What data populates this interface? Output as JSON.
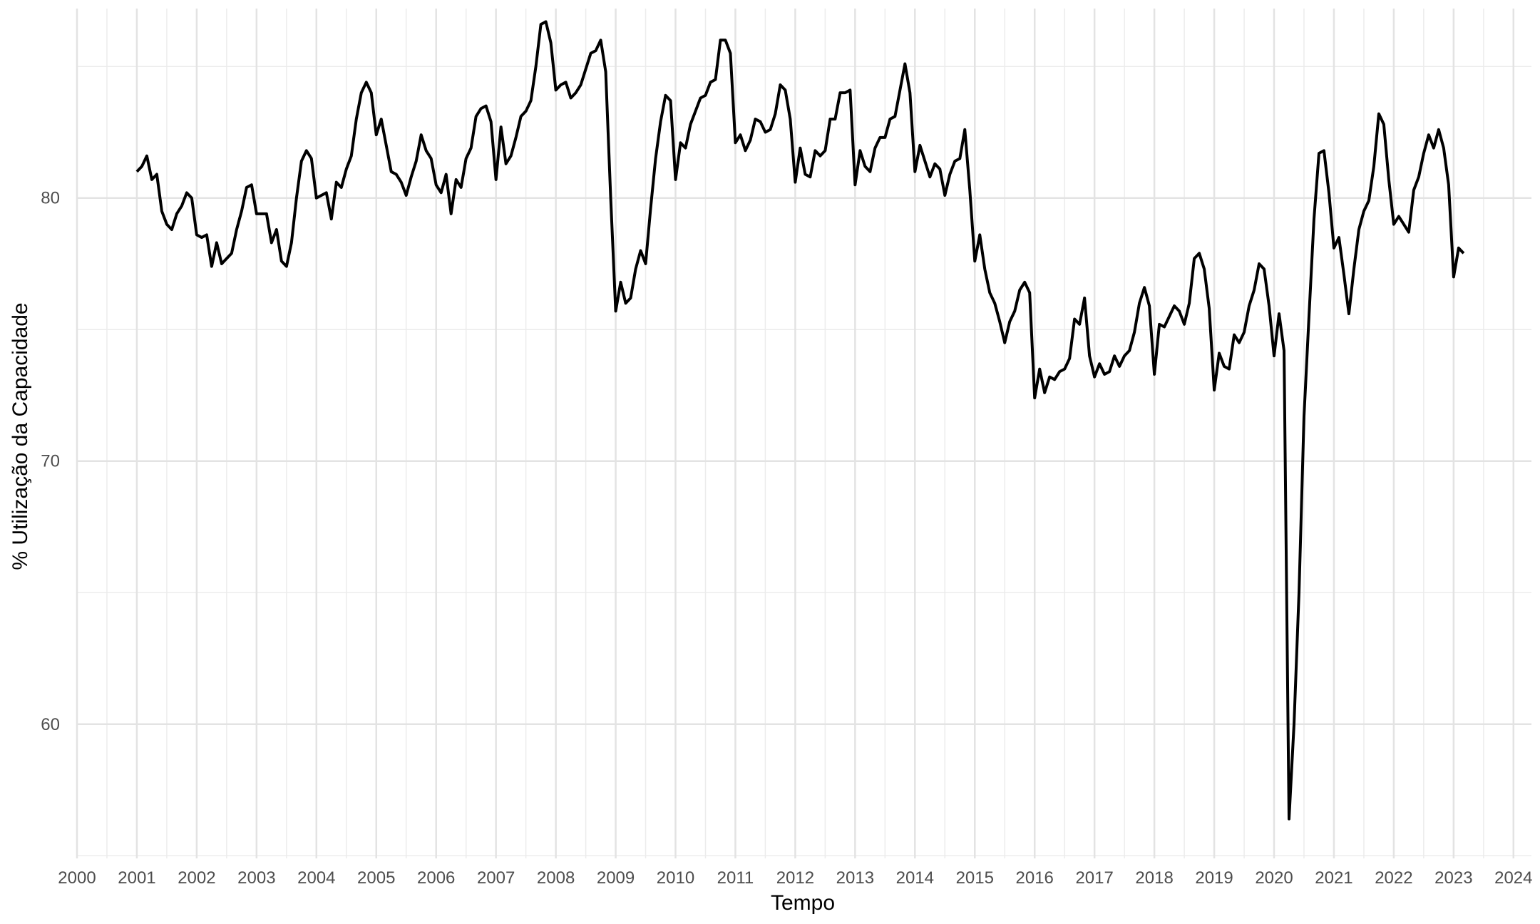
{
  "chart_data": {
    "type": "line",
    "title": "",
    "xlabel": "Tempo",
    "ylabel": "% Utilização da Capacidade",
    "xlim": [
      2000,
      2024.3
    ],
    "ylim": [
      54.9,
      87.2
    ],
    "x_ticks": [
      "2000",
      "2001",
      "2002",
      "2003",
      "2004",
      "2005",
      "2006",
      "2007",
      "2008",
      "2009",
      "2010",
      "2011",
      "2012",
      "2013",
      "2014",
      "2015",
      "2016",
      "2017",
      "2018",
      "2019",
      "2020",
      "2021",
      "2022",
      "2023",
      "2024"
    ],
    "y_ticks": [
      "60",
      "70",
      "80"
    ],
    "grid": true,
    "legend": "none",
    "line_color": "#000000",
    "series": [
      {
        "x": [
          "2001-01",
          "2001-02",
          "2001-03",
          "2001-04",
          "2001-05",
          "2001-06",
          "2001-07",
          "2001-08",
          "2001-09",
          "2001-10",
          "2001-11",
          "2001-12",
          "2002-01",
          "2002-02",
          "2002-03",
          "2002-04",
          "2002-05",
          "2002-06",
          "2002-07",
          "2002-08",
          "2002-09",
          "2002-10",
          "2002-11",
          "2002-12",
          "2003-01",
          "2003-02",
          "2003-03",
          "2003-04",
          "2003-05",
          "2003-06",
          "2003-07",
          "2003-08",
          "2003-09",
          "2003-10",
          "2003-11",
          "2003-12",
          "2004-01",
          "2004-02",
          "2004-03",
          "2004-04",
          "2004-05",
          "2004-06",
          "2004-07",
          "2004-08",
          "2004-09",
          "2004-10",
          "2004-11",
          "2004-12",
          "2005-01",
          "2005-02",
          "2005-03",
          "2005-04",
          "2005-05",
          "2005-06",
          "2005-07",
          "2005-08",
          "2005-09",
          "2005-10",
          "2005-11",
          "2005-12",
          "2006-01",
          "2006-02",
          "2006-03",
          "2006-04",
          "2006-05",
          "2006-06",
          "2006-07",
          "2006-08",
          "2006-09",
          "2006-10",
          "2006-11",
          "2006-12",
          "2007-01",
          "2007-02",
          "2007-03",
          "2007-04",
          "2007-05",
          "2007-06",
          "2007-07",
          "2007-08",
          "2007-09",
          "2007-10",
          "2007-11",
          "2007-12",
          "2008-01",
          "2008-02",
          "2008-03",
          "2008-04",
          "2008-05",
          "2008-06",
          "2008-07",
          "2008-08",
          "2008-09",
          "2008-10",
          "2008-11",
          "2008-12",
          "2009-01",
          "2009-02",
          "2009-03",
          "2009-04",
          "2009-05",
          "2009-06",
          "2009-07",
          "2009-08",
          "2009-09",
          "2009-10",
          "2009-11",
          "2009-12",
          "2010-01",
          "2010-02",
          "2010-03",
          "2010-04",
          "2010-05",
          "2010-06",
          "2010-07",
          "2010-08",
          "2010-09",
          "2010-10",
          "2010-11",
          "2010-12",
          "2011-01",
          "2011-02",
          "2011-03",
          "2011-04",
          "2011-05",
          "2011-06",
          "2011-07",
          "2011-08",
          "2011-09",
          "2011-10",
          "2011-11",
          "2011-12",
          "2012-01",
          "2012-02",
          "2012-03",
          "2012-04",
          "2012-05",
          "2012-06",
          "2012-07",
          "2012-08",
          "2012-09",
          "2012-10",
          "2012-11",
          "2012-12",
          "2013-01",
          "2013-02",
          "2013-03",
          "2013-04",
          "2013-05",
          "2013-06",
          "2013-07",
          "2013-08",
          "2013-09",
          "2013-10",
          "2013-11",
          "2013-12",
          "2014-01",
          "2014-02",
          "2014-03",
          "2014-04",
          "2014-05",
          "2014-06",
          "2014-07",
          "2014-08",
          "2014-09",
          "2014-10",
          "2014-11",
          "2014-12",
          "2015-01",
          "2015-02",
          "2015-03",
          "2015-04",
          "2015-05",
          "2015-06",
          "2015-07",
          "2015-08",
          "2015-09",
          "2015-10",
          "2015-11",
          "2015-12",
          "2016-01",
          "2016-02",
          "2016-03",
          "2016-04",
          "2016-05",
          "2016-06",
          "2016-07",
          "2016-08",
          "2016-09",
          "2016-10",
          "2016-11",
          "2016-12",
          "2017-01",
          "2017-02",
          "2017-03",
          "2017-04",
          "2017-05",
          "2017-06",
          "2017-07",
          "2017-08",
          "2017-09",
          "2017-10",
          "2017-11",
          "2017-12",
          "2018-01",
          "2018-02",
          "2018-03",
          "2018-04",
          "2018-05",
          "2018-06",
          "2018-07",
          "2018-08",
          "2018-09",
          "2018-10",
          "2018-11",
          "2018-12",
          "2019-01",
          "2019-02",
          "2019-03",
          "2019-04",
          "2019-05",
          "2019-06",
          "2019-07",
          "2019-08",
          "2019-09",
          "2019-10",
          "2019-11",
          "2019-12",
          "2020-01",
          "2020-02",
          "2020-03",
          "2020-04",
          "2020-05",
          "2020-06",
          "2020-07",
          "2020-08",
          "2020-09",
          "2020-10",
          "2020-11",
          "2020-12",
          "2021-01",
          "2021-02",
          "2021-03",
          "2021-04",
          "2021-05",
          "2021-06",
          "2021-07",
          "2021-08",
          "2021-09",
          "2021-10",
          "2021-11",
          "2021-12",
          "2022-01",
          "2022-02",
          "2022-03",
          "2022-04",
          "2022-05",
          "2022-06",
          "2022-07",
          "2022-08",
          "2022-09",
          "2022-10",
          "2022-11",
          "2022-12",
          "2023-01",
          "2023-02",
          "2023-03"
        ],
        "y": [
          81.0,
          81.2,
          81.6,
          80.7,
          80.9,
          79.5,
          79.0,
          78.8,
          79.4,
          79.7,
          80.2,
          80.0,
          78.6,
          78.5,
          78.6,
          77.4,
          78.3,
          77.5,
          77.7,
          77.9,
          78.8,
          79.5,
          80.4,
          80.5,
          79.4,
          79.4,
          79.4,
          78.3,
          78.8,
          77.6,
          77.4,
          78.3,
          80.0,
          81.4,
          81.8,
          81.5,
          80.0,
          80.1,
          80.2,
          79.2,
          80.6,
          80.4,
          81.1,
          81.6,
          83.0,
          84.0,
          84.4,
          84.0,
          82.4,
          83.0,
          82.0,
          81.0,
          80.9,
          80.6,
          80.1,
          80.8,
          81.4,
          82.4,
          81.8,
          81.5,
          80.5,
          80.2,
          80.9,
          79.4,
          80.7,
          80.4,
          81.5,
          81.9,
          83.1,
          83.4,
          83.5,
          82.9,
          80.7,
          82.7,
          81.3,
          81.6,
          82.3,
          83.1,
          83.3,
          83.7,
          85.0,
          86.6,
          86.7,
          85.9,
          84.1,
          84.3,
          84.4,
          83.8,
          84.0,
          84.3,
          84.9,
          85.5,
          85.6,
          86.0,
          84.8,
          80.0,
          75.7,
          76.8,
          76.0,
          76.2,
          77.3,
          78.0,
          77.5,
          79.6,
          81.5,
          82.9,
          83.9,
          83.7,
          80.7,
          82.1,
          81.9,
          82.8,
          83.3,
          83.8,
          83.9,
          84.4,
          84.5,
          86.0,
          86.0,
          85.5,
          82.1,
          82.4,
          81.8,
          82.2,
          83.0,
          82.9,
          82.5,
          82.6,
          83.2,
          84.3,
          84.1,
          83.0,
          80.6,
          81.9,
          80.9,
          80.8,
          81.8,
          81.6,
          81.8,
          83.0,
          83.0,
          84.0,
          84.0,
          84.1,
          80.5,
          81.8,
          81.2,
          81.0,
          81.9,
          82.3,
          82.3,
          83.0,
          83.1,
          84.1,
          85.1,
          84.0,
          81.0,
          82.0,
          81.4,
          80.8,
          81.3,
          81.1,
          80.1,
          80.9,
          81.4,
          81.5,
          82.6,
          80.3,
          77.6,
          78.6,
          77.3,
          76.4,
          76.0,
          75.3,
          74.5,
          75.3,
          75.7,
          76.5,
          76.8,
          76.4,
          72.4,
          73.5,
          72.6,
          73.2,
          73.1,
          73.4,
          73.5,
          73.9,
          75.4,
          75.2,
          76.2,
          74.0,
          73.2,
          73.7,
          73.3,
          73.4,
          74.0,
          73.6,
          74.0,
          74.2,
          74.9,
          76.0,
          76.6,
          75.9,
          73.3,
          75.2,
          75.1,
          75.5,
          75.9,
          75.7,
          75.2,
          76.0,
          77.7,
          77.9,
          77.3,
          75.8,
          72.7,
          74.1,
          73.6,
          73.5,
          74.8,
          74.5,
          74.9,
          75.9,
          76.5,
          77.5,
          77.3,
          75.9,
          74.0,
          75.6,
          74.2,
          56.4,
          60.0,
          65.0,
          71.7,
          75.5,
          79.2,
          81.7,
          81.8,
          80.2,
          78.1,
          78.5,
          77.1,
          75.6,
          77.3,
          78.8,
          79.5,
          79.9,
          81.2,
          83.2,
          82.8,
          80.7,
          79.0,
          79.3,
          79.0,
          78.7,
          80.3,
          80.8,
          81.7,
          82.4,
          81.9,
          82.6,
          81.9,
          80.5,
          77.0,
          78.1,
          77.9
        ]
      }
    ]
  }
}
